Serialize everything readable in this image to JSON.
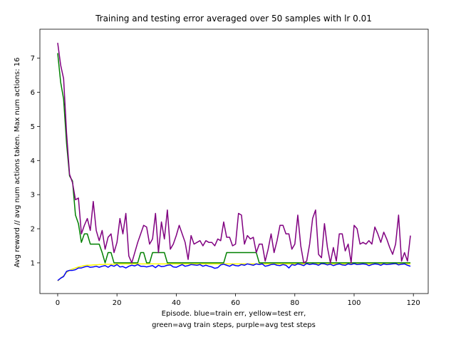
{
  "chart_data": {
    "type": "line",
    "title": "Training and testing error averaged over 50 samples with lr 0.01",
    "xlabel_lines": [
      "Episode.  blue=train err, yellow=test err,",
      "green=avg train steps, purple=avg test steps"
    ],
    "ylabel": "Avg reward // avg num actions taken.  Max num actions: 16",
    "xlim": [
      -6,
      125
    ],
    "ylim": [
      0.1,
      7.85
    ],
    "x_ticks": [
      0,
      20,
      40,
      60,
      80,
      100,
      120
    ],
    "y_ticks": [
      1,
      2,
      3,
      4,
      5,
      6,
      7
    ],
    "grid": false,
    "series": [
      {
        "color": "#ffff00",
        "values": [
          0.47,
          0.55,
          0.62,
          0.72,
          0.78,
          0.82,
          0.85,
          0.88,
          0.9,
          0.92,
          0.93,
          0.93,
          0.94,
          0.94,
          0.95,
          0.95,
          0.96,
          0.96,
          0.96,
          0.96,
          0.97,
          0.97,
          0.97,
          0.97,
          0.97,
          0.97,
          0.97,
          0.97,
          0.97,
          0.97,
          0.97,
          0.97,
          0.97,
          0.97,
          0.97,
          0.97,
          0.97,
          0.97,
          0.97,
          0.97,
          0.97,
          0.97,
          0.97,
          0.97,
          0.97,
          0.97,
          0.97,
          0.97,
          0.97,
          0.97,
          0.97,
          0.97,
          0.97,
          0.97,
          0.97,
          0.97,
          0.97,
          0.97,
          0.97,
          0.97,
          0.97,
          0.97,
          0.97,
          0.97,
          0.97,
          0.97,
          0.97,
          0.97,
          0.97,
          0.97,
          0.97,
          0.97,
          0.97,
          0.97,
          0.97,
          0.97,
          0.97,
          0.97,
          0.97,
          0.97,
          0.97,
          0.97,
          0.97,
          0.97,
          0.97,
          0.97,
          0.97,
          0.97,
          0.97,
          0.97,
          0.97,
          0.97,
          0.97,
          0.97,
          0.97,
          0.97,
          0.97,
          0.97,
          0.97,
          0.97,
          0.97,
          0.97,
          0.97,
          0.97,
          0.97,
          0.97,
          0.97,
          0.97,
          0.97,
          0.97,
          0.97,
          0.97,
          0.97,
          0.97,
          0.97,
          0.97,
          0.97,
          0.97,
          0.97,
          0.97
        ]
      },
      {
        "color": "#0000ff",
        "values": [
          0.48,
          0.55,
          0.6,
          0.75,
          0.78,
          0.78,
          0.8,
          0.85,
          0.85,
          0.88,
          0.9,
          0.87,
          0.88,
          0.9,
          0.87,
          0.9,
          0.92,
          0.87,
          0.93,
          0.9,
          0.95,
          0.88,
          0.89,
          0.85,
          0.9,
          0.93,
          0.91,
          0.95,
          0.9,
          0.9,
          0.88,
          0.9,
          0.92,
          0.86,
          0.93,
          0.89,
          0.9,
          0.93,
          0.94,
          0.88,
          0.87,
          0.91,
          0.95,
          0.9,
          0.92,
          0.95,
          0.94,
          0.93,
          0.95,
          0.9,
          0.93,
          0.9,
          0.88,
          0.84,
          0.86,
          0.94,
          0.96,
          0.93,
          0.9,
          0.95,
          0.92,
          0.91,
          0.95,
          0.93,
          0.97,
          0.95,
          0.93,
          0.97,
          0.95,
          0.97,
          0.9,
          0.92,
          0.95,
          0.96,
          0.93,
          0.92,
          0.95,
          0.93,
          0.85,
          0.95,
          0.93,
          0.97,
          0.95,
          0.92,
          0.98,
          0.95,
          0.97,
          0.96,
          0.93,
          0.98,
          0.97,
          0.94,
          0.96,
          0.92,
          0.95,
          0.97,
          0.94,
          0.93,
          0.97,
          0.95,
          0.98,
          0.95,
          0.96,
          0.97,
          0.96,
          0.92,
          0.95,
          0.97,
          0.96,
          0.93,
          0.97,
          0.95,
          0.96,
          0.97,
          0.98,
          0.94,
          0.96,
          0.97,
          0.93,
          0.9
        ]
      },
      {
        "color": "#008000",
        "values": [
          7.15,
          6.3,
          5.8,
          4.5,
          3.55,
          3.4,
          2.4,
          2.15,
          1.6,
          1.85,
          1.85,
          1.55,
          1.55,
          1.55,
          1.55,
          1.3,
          1.0,
          1.3,
          1.3,
          1.0,
          1.0,
          1.0,
          1.0,
          1.0,
          1.0,
          1.0,
          1.0,
          1.0,
          1.3,
          1.3,
          1.0,
          1.0,
          1.3,
          1.3,
          1.3,
          1.3,
          1.3,
          1.0,
          1.0,
          1.0,
          1.0,
          1.0,
          1.0,
          1.0,
          1.0,
          1.0,
          1.0,
          1.0,
          1.0,
          1.0,
          1.0,
          1.0,
          1.0,
          1.0,
          1.0,
          1.0,
          1.0,
          1.3,
          1.3,
          1.3,
          1.3,
          1.3,
          1.3,
          1.3,
          1.3,
          1.3,
          1.3,
          1.3,
          1.0,
          1.0,
          1.0,
          1.0,
          1.0,
          1.0,
          1.0,
          1.0,
          1.0,
          1.0,
          1.0,
          1.0,
          1.0,
          1.0,
          1.0,
          1.0,
          1.0,
          1.0,
          1.0,
          1.0,
          1.0,
          1.0,
          1.0,
          1.0,
          1.0,
          1.0,
          1.0,
          1.0,
          1.0,
          1.0,
          1.0,
          1.0,
          1.0,
          1.0,
          1.0,
          1.0,
          1.0,
          1.0,
          1.0,
          1.0,
          1.0,
          1.0,
          1.0,
          1.0,
          1.0,
          1.0,
          1.0,
          1.0,
          1.0,
          1.0,
          1.0,
          1.0
        ]
      },
      {
        "color": "#800080",
        "values": [
          7.45,
          6.8,
          6.4,
          4.8,
          3.6,
          3.35,
          2.85,
          2.9,
          1.85,
          2.1,
          2.3,
          1.95,
          2.8,
          1.95,
          1.65,
          1.95,
          1.4,
          1.75,
          1.85,
          1.3,
          1.6,
          2.3,
          1.85,
          2.45,
          1.2,
          1.0,
          1.3,
          1.6,
          1.85,
          2.1,
          2.05,
          1.55,
          1.7,
          2.45,
          1.3,
          2.2,
          1.7,
          2.55,
          1.4,
          1.55,
          1.8,
          2.1,
          1.85,
          1.6,
          1.1,
          1.8,
          1.55,
          1.6,
          1.65,
          1.5,
          1.65,
          1.6,
          1.6,
          1.5,
          1.7,
          1.65,
          2.2,
          1.75,
          1.75,
          1.5,
          1.55,
          2.45,
          2.4,
          1.55,
          1.8,
          1.7,
          1.75,
          1.3,
          1.55,
          1.55,
          1.05,
          1.4,
          1.85,
          1.3,
          1.65,
          2.1,
          2.1,
          1.85,
          1.85,
          1.4,
          1.55,
          2.4,
          1.5,
          1.0,
          1.05,
          1.55,
          2.3,
          2.55,
          1.25,
          1.15,
          2.15,
          1.45,
          1.0,
          1.45,
          1.05,
          1.85,
          1.85,
          1.35,
          1.55,
          1.0,
          2.1,
          2.0,
          1.55,
          1.6,
          1.55,
          1.65,
          1.55,
          2.05,
          1.85,
          1.6,
          1.9,
          1.7,
          1.45,
          1.25,
          1.55,
          2.4,
          1.05,
          1.3,
          1.05,
          1.8
        ]
      }
    ]
  }
}
